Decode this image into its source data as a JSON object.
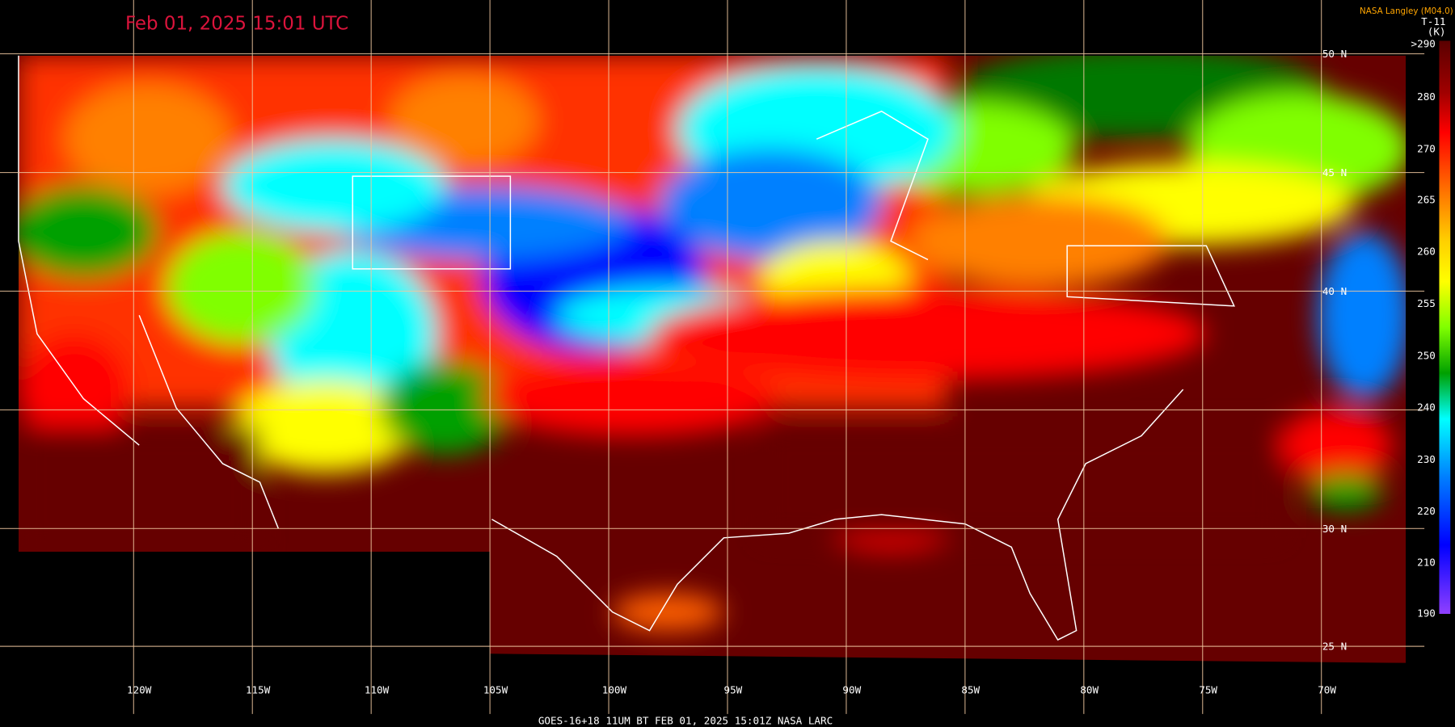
{
  "header": {
    "title": "Feb 01, 2025 15:01 UTC",
    "provider": "NASA Langley (M04.0)"
  },
  "colorbar": {
    "title": "T-11",
    "unit": "(K)",
    "labels": [
      ">290",
      "280",
      "270",
      "265",
      "260",
      "255",
      "250",
      "240",
      "230",
      "220",
      "210",
      "190"
    ]
  },
  "latitude_labels": [
    "50 N",
    "45 N",
    "40 N",
    "30 N",
    "25 N"
  ],
  "longitude_labels": [
    "120W",
    "115W",
    "110W",
    "105W",
    "100W",
    "95W",
    "90W",
    "85W",
    "80W",
    "75W",
    "70W"
  ],
  "footer": "GOES-16+18  11UM BT   FEB 01, 2025 15:01Z   NASA LARC"
}
